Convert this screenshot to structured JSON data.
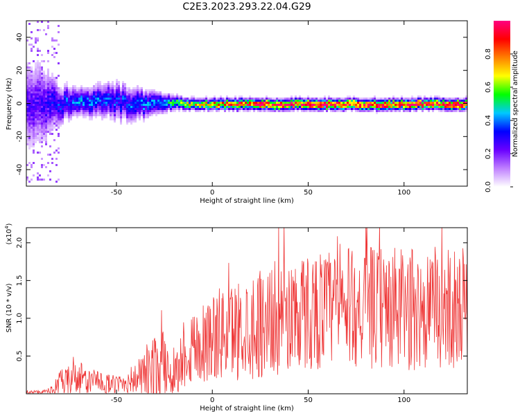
{
  "title": "C2E3.2023.293.22.04.G29",
  "chart_data": [
    {
      "type": "heatmap",
      "xlabel": "Height of straight line (km)",
      "ylabel": "Frequency (Hz)",
      "xlim": [
        -97,
        133
      ],
      "ylim": [
        -50,
        50
      ],
      "x_ticks": [
        -50,
        0,
        50,
        100
      ],
      "y_ticks": [
        -40,
        -20,
        0,
        20,
        40
      ],
      "colorbar": {
        "label": "Normalized spectral amplitude",
        "range": [
          0,
          1
        ],
        "ticks": [
          "0.0",
          "0.2",
          "0.4",
          "0.6",
          "0.8"
        ],
        "colors": [
          "#ffffff",
          "#c080ff",
          "#6a00ff",
          "#0000ff",
          "#00c8ff",
          "#00ff00",
          "#ffff00",
          "#ff8000",
          "#ff0000",
          "#ff0080"
        ]
      },
      "ridge": [
        {
          "x": -90,
          "f": 0,
          "spread": 18,
          "amp": 0.25
        },
        {
          "x": -80,
          "f": 0,
          "spread": 8,
          "amp": 0.35
        },
        {
          "x": -70,
          "f": 2,
          "spread": 6,
          "amp": 0.4
        },
        {
          "x": -60,
          "f": 3,
          "spread": 7,
          "amp": 0.38
        },
        {
          "x": -50,
          "f": 2,
          "spread": 8,
          "amp": 0.35
        },
        {
          "x": -40,
          "f": 0,
          "spread": 7,
          "amp": 0.38
        },
        {
          "x": -30,
          "f": 1,
          "spread": 5,
          "amp": 0.42
        },
        {
          "x": -20,
          "f": 1,
          "spread": 3,
          "amp": 0.55
        },
        {
          "x": -10,
          "f": 0,
          "spread": 2.5,
          "amp": 0.7
        },
        {
          "x": 0,
          "f": 0,
          "spread": 2.5,
          "amp": 0.8
        },
        {
          "x": 25,
          "f": 0,
          "spread": 2.5,
          "amp": 0.95
        },
        {
          "x": 60,
          "f": 0,
          "spread": 2.5,
          "amp": 0.97
        },
        {
          "x": 133,
          "f": 0,
          "spread": 2.5,
          "amp": 0.97
        }
      ]
    },
    {
      "type": "line",
      "xlabel": "Height of straight line (km)",
      "ylabel": "SNR (10 * v/v)",
      "y_multiplier": "(x10^4)",
      "xlim": [
        -97,
        133
      ],
      "ylim": [
        0,
        2.2
      ],
      "x_ticks": [
        -50,
        0,
        50,
        100
      ],
      "y_ticks": [
        0.5,
        1.0,
        1.5,
        2.0
      ],
      "y_tick_labels": [
        "0.5",
        "1.0",
        "1.5",
        "2.0"
      ],
      "color": "#ee3333",
      "envelope": [
        {
          "x": -97,
          "base": 0.02,
          "range": 0.02
        },
        {
          "x": -85,
          "base": 0.03,
          "range": 0.03
        },
        {
          "x": -80,
          "base": 0.12,
          "range": 0.18
        },
        {
          "x": -70,
          "base": 0.2,
          "range": 0.25
        },
        {
          "x": -60,
          "base": 0.15,
          "range": 0.15
        },
        {
          "x": -50,
          "base": 0.12,
          "range": 0.12
        },
        {
          "x": -40,
          "base": 0.2,
          "range": 0.2
        },
        {
          "x": -32,
          "base": 0.3,
          "range": 0.45
        },
        {
          "x": -25,
          "base": 0.35,
          "range": 0.5
        },
        {
          "x": -18,
          "base": 0.3,
          "range": 0.3
        },
        {
          "x": -15,
          "base": 0.55,
          "range": 0.5
        },
        {
          "x": 0,
          "base": 0.75,
          "range": 0.6
        },
        {
          "x": 25,
          "base": 0.95,
          "range": 0.75
        },
        {
          "x": 50,
          "base": 1.1,
          "range": 0.8
        },
        {
          "x": 75,
          "base": 1.15,
          "range": 0.8
        },
        {
          "x": 100,
          "base": 1.1,
          "range": 0.85
        },
        {
          "x": 133,
          "base": 1.15,
          "range": 0.8
        }
      ]
    }
  ]
}
